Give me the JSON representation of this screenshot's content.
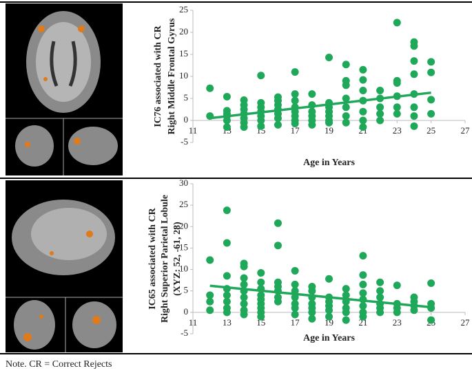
{
  "chart_data": [
    {
      "type": "scatter",
      "y_label": [
        "IC76 associated with CR",
        "Right Middle Frontal Gyrus"
      ],
      "x_label": "Age in Years",
      "color": "#1fa85a",
      "x": [
        12,
        12,
        13,
        13,
        13,
        13,
        13,
        13,
        14,
        14,
        14,
        14,
        14,
        14,
        14,
        15,
        15,
        15,
        15,
        15,
        15,
        15,
        16,
        16,
        16,
        16,
        16,
        16,
        16,
        17,
        17,
        17,
        17,
        17,
        17,
        17,
        17,
        18,
        18,
        18,
        18,
        18,
        18,
        19,
        19,
        19,
        19,
        19,
        19,
        19,
        20,
        20,
        20,
        20,
        20,
        20,
        20,
        21,
        21,
        21,
        21,
        21,
        21,
        21,
        22,
        22,
        22,
        22,
        22,
        23,
        23,
        23,
        23,
        23,
        23,
        24,
        24,
        24,
        24,
        24,
        24,
        24,
        24,
        25,
        25,
        25,
        25
      ],
      "values": [
        7.3,
        1,
        5.4,
        2.2,
        1,
        0,
        -1.5,
        1.5,
        4.6,
        3.5,
        2.5,
        1.5,
        0.5,
        -0.5,
        -1.5,
        10.2,
        4,
        3,
        2,
        1,
        0,
        -1.3,
        5.3,
        4.5,
        3.5,
        2.5,
        1.5,
        0.5,
        -1,
        11,
        6,
        4.5,
        3,
        2,
        1,
        0,
        -0.7,
        6,
        3.5,
        2,
        1,
        0,
        -1,
        14.3,
        4,
        3,
        2,
        1,
        0,
        -0.5,
        12.7,
        9,
        8,
        5,
        3,
        1,
        -0.5,
        11.5,
        9.2,
        6.8,
        4.5,
        2,
        0,
        -1.5,
        6.8,
        5,
        3,
        1.5,
        0,
        22.2,
        9,
        8.5,
        5.5,
        3,
        1.5,
        17.8,
        16.9,
        13.5,
        10.5,
        6,
        3,
        1,
        -1.3,
        13.3,
        10.9,
        4.7,
        1.5
      ],
      "trend": {
        "x": [
          12,
          25
        ],
        "y": [
          0.5,
          6.3
        ]
      },
      "xlim": [
        11,
        27
      ],
      "xticks": [
        11,
        13,
        15,
        17,
        19,
        21,
        23,
        25,
        27
      ],
      "ylim": [
        -5,
        25
      ],
      "yticks": [
        -5,
        0,
        5,
        10,
        15,
        20,
        25
      ]
    },
    {
      "type": "scatter",
      "y_label": [
        "IC65 associated with CR",
        "Right Superior Parietal Lobule",
        "(XYZ: 52, -61, 28)"
      ],
      "x_label": "Age in Years",
      "color": "#1fa85a",
      "x": [
        12,
        12,
        12,
        12,
        13,
        13,
        13,
        13,
        13,
        13,
        13,
        13,
        14,
        14,
        14,
        14,
        14,
        14,
        14,
        14,
        14,
        15,
        15,
        15,
        15,
        15,
        15,
        15,
        15,
        15,
        16,
        16,
        16,
        16,
        16,
        16,
        16,
        17,
        17,
        17,
        17,
        17,
        17,
        17,
        18,
        18,
        18,
        18,
        18,
        18,
        18,
        19,
        19,
        19,
        19,
        19,
        19,
        20,
        20,
        20,
        20,
        20,
        20,
        21,
        21,
        21,
        21,
        21,
        21,
        21,
        21,
        22,
        22,
        22,
        22,
        22,
        22,
        23,
        23,
        23,
        23,
        24,
        24,
        24,
        24,
        25,
        25,
        25,
        25
      ],
      "values": [
        12.2,
        4,
        2.5,
        0.5,
        23.8,
        16.2,
        8.5,
        5.5,
        4,
        2.5,
        1,
        0,
        11.4,
        10.7,
        8,
        6.5,
        5,
        3.5,
        2,
        0.5,
        -0.5,
        9.2,
        7,
        5.5,
        4,
        3,
        2,
        1,
        0,
        -1,
        20.8,
        15.6,
        7,
        6,
        5,
        3.5,
        2.5,
        9.7,
        6.5,
        5,
        3.5,
        2,
        1,
        -0.5,
        6,
        5,
        3.5,
        2,
        1,
        0,
        -1.5,
        7.8,
        3.5,
        2.5,
        1.5,
        0.5,
        -1,
        5.5,
        4,
        2.5,
        1,
        0,
        -1.8,
        13.2,
        8.7,
        6.5,
        4.5,
        3,
        1.5,
        0,
        -1,
        7,
        5,
        3.5,
        2,
        1,
        0,
        6.3,
        2,
        1,
        0,
        3.5,
        2.5,
        1.5,
        0.5,
        6.8,
        2,
        1,
        -1.8
      ],
      "trend": {
        "x": [
          12,
          25
        ],
        "y": [
          6.2,
          1.2
        ]
      },
      "xlim": [
        11,
        27
      ],
      "xticks": [
        11,
        13,
        15,
        17,
        19,
        21,
        23,
        25,
        27
      ],
      "ylim": [
        -5,
        30
      ],
      "yticks": [
        -5,
        0,
        5,
        10,
        15,
        20,
        25,
        30
      ]
    }
  ],
  "note": "Note. CR = Correct Rejects"
}
